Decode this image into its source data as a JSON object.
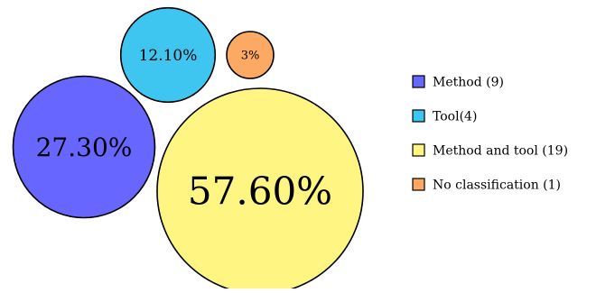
{
  "chart_data": {
    "type": "bubble",
    "title": "",
    "data_labels": [
      "27.30%",
      "12.10%",
      "3%",
      "57.60%"
    ],
    "series": [
      {
        "name": "Method (9)",
        "count": 9,
        "percent": 27.3,
        "color": "#6766ff"
      },
      {
        "name": "Tool(4)",
        "count": 4,
        "percent": 12.1,
        "color": "#3fc6f0"
      },
      {
        "name": "No classification (1)",
        "count": 1,
        "percent": 3.0,
        "color": "#fca964"
      },
      {
        "name": "Method and tool (19)",
        "count": 19,
        "percent": 57.6,
        "color": "#fef582"
      }
    ],
    "legend": {
      "placement": "right",
      "order": [
        "Method (9)",
        "Tool(4)",
        "Method and tool (19)",
        "No classification (1)"
      ]
    }
  }
}
